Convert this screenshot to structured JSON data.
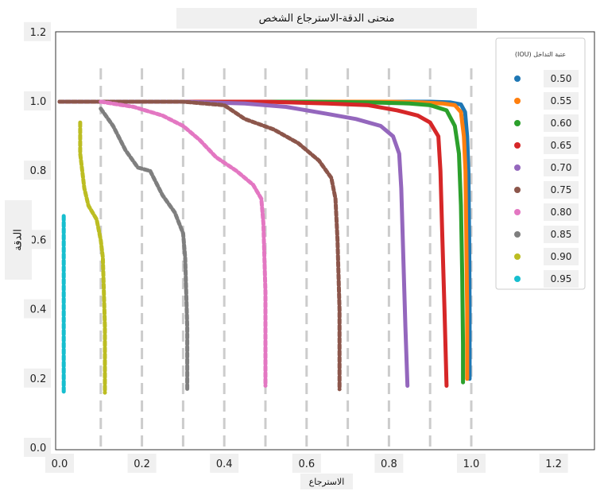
{
  "chart_data": {
    "type": "line",
    "title": "منحنى الدقة-الاسترجاع الشخص",
    "xlabel": "الاسترجاع",
    "ylabel": "الدقة",
    "xlim": [
      0.0,
      1.2
    ],
    "ylim": [
      0.0,
      1.2
    ],
    "x_ticks": [
      "0.0",
      "0.2",
      "0.4",
      "0.6",
      "0.8",
      "1.0",
      "1.2"
    ],
    "y_ticks": [
      "0.0",
      "0.2",
      "0.4",
      "0.6",
      "0.8",
      "1.0",
      "1.2"
    ],
    "x_gridlines": [
      0.1,
      0.2,
      0.3,
      0.4,
      0.5,
      0.6,
      0.7,
      0.8,
      0.9,
      1.0
    ],
    "grid": "vertical dashed",
    "legend_title": "(IOU) عتبة التداخل",
    "legend_position": "top-right",
    "series": [
      {
        "name": "0.50",
        "color": "#1f77b4",
        "x": [
          0.0,
          0.3,
          0.6,
          0.8,
          0.9,
          0.95,
          0.975,
          0.985,
          0.99,
          0.993,
          0.995,
          0.996,
          0.996
        ],
        "y": [
          1.0,
          1.0,
          1.0,
          1.0,
          1.0,
          0.998,
          0.992,
          0.97,
          0.9,
          0.8,
          0.6,
          0.4,
          0.2
        ]
      },
      {
        "name": "0.55",
        "color": "#ff7f0e",
        "x": [
          0.0,
          0.3,
          0.6,
          0.8,
          0.88,
          0.93,
          0.96,
          0.975,
          0.982,
          0.986,
          0.988,
          0.99,
          0.99
        ],
        "y": [
          1.0,
          1.0,
          1.0,
          1.0,
          0.998,
          0.995,
          0.99,
          0.97,
          0.9,
          0.8,
          0.6,
          0.4,
          0.2
        ]
      },
      {
        "name": "0.60",
        "color": "#2ca02c",
        "x": [
          0.0,
          0.3,
          0.6,
          0.75,
          0.85,
          0.9,
          0.94,
          0.96,
          0.97,
          0.975,
          0.978,
          0.98,
          0.98
        ],
        "y": [
          1.0,
          1.0,
          1.0,
          0.998,
          0.995,
          0.99,
          0.975,
          0.93,
          0.85,
          0.7,
          0.5,
          0.3,
          0.19
        ]
      },
      {
        "name": "0.65",
        "color": "#d62728",
        "x": [
          0.0,
          0.3,
          0.5,
          0.65,
          0.75,
          0.82,
          0.87,
          0.9,
          0.92,
          0.925,
          0.93,
          0.935,
          0.94
        ],
        "y": [
          1.0,
          1.0,
          1.0,
          0.995,
          0.99,
          0.975,
          0.96,
          0.94,
          0.9,
          0.8,
          0.6,
          0.4,
          0.18
        ]
      },
      {
        "name": "0.70",
        "color": "#9467bd",
        "x": [
          0.0,
          0.3,
          0.45,
          0.55,
          0.65,
          0.72,
          0.78,
          0.81,
          0.825,
          0.83,
          0.835,
          0.84,
          0.845
        ],
        "y": [
          1.0,
          1.0,
          0.995,
          0.985,
          0.965,
          0.95,
          0.93,
          0.9,
          0.85,
          0.75,
          0.55,
          0.35,
          0.18
        ]
      },
      {
        "name": "0.75",
        "color": "#8c564b",
        "x": [
          0.0,
          0.3,
          0.4,
          0.45,
          0.52,
          0.58,
          0.63,
          0.66,
          0.67,
          0.675,
          0.68,
          0.68
        ],
        "y": [
          1.0,
          1.0,
          0.99,
          0.95,
          0.92,
          0.88,
          0.83,
          0.78,
          0.72,
          0.6,
          0.4,
          0.17
        ]
      },
      {
        "name": "0.80",
        "color": "#e377c2",
        "x": [
          0.1,
          0.18,
          0.25,
          0.3,
          0.34,
          0.38,
          0.43,
          0.47,
          0.49,
          0.495,
          0.5,
          0.5
        ],
        "y": [
          1.0,
          0.985,
          0.96,
          0.93,
          0.89,
          0.84,
          0.8,
          0.76,
          0.72,
          0.65,
          0.45,
          0.18
        ]
      },
      {
        "name": "0.85",
        "color": "#7f7f7f",
        "x": [
          0.1,
          0.13,
          0.16,
          0.19,
          0.22,
          0.25,
          0.28,
          0.3,
          0.305,
          0.31,
          0.31
        ],
        "y": [
          0.98,
          0.93,
          0.86,
          0.81,
          0.8,
          0.73,
          0.68,
          0.62,
          0.55,
          0.35,
          0.17
        ]
      },
      {
        "name": "0.90",
        "color": "#bcbd22",
        "x": [
          0.05,
          0.05,
          0.06,
          0.07,
          0.09,
          0.1,
          0.105,
          0.11,
          0.11
        ],
        "y": [
          0.94,
          0.85,
          0.75,
          0.7,
          0.66,
          0.6,
          0.55,
          0.35,
          0.16
        ]
      },
      {
        "name": "0.95",
        "color": "#17becf",
        "x": [
          0.01,
          0.01,
          0.01,
          0.01,
          0.01,
          0.01,
          0.01,
          0.01,
          0.01,
          0.01,
          0.01,
          0.01,
          0.01
        ],
        "y": [
          0.67,
          0.62,
          0.58,
          0.54,
          0.5,
          0.46,
          0.42,
          0.39,
          0.35,
          0.3,
          0.25,
          0.2,
          0.16
        ]
      }
    ]
  }
}
